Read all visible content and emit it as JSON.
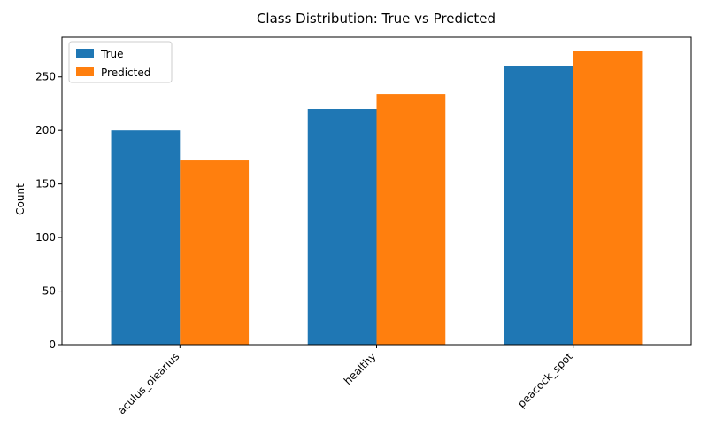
{
  "chart_data": {
    "type": "bar",
    "title": "Class Distribution: True vs Predicted",
    "xlabel": "",
    "ylabel": "Count",
    "categories": [
      "aculus_olearius",
      "healthy",
      "peacock_spot"
    ],
    "series": [
      {
        "name": "True",
        "values": [
          200,
          220,
          260
        ],
        "color": "#1f77b4"
      },
      {
        "name": "Predicted",
        "values": [
          172,
          234,
          274
        ],
        "color": "#ff7f0e"
      }
    ],
    "ylim": [
      0,
      287
    ],
    "yticks": [
      0,
      50,
      100,
      150,
      200,
      250
    ],
    "legend_position": "top-left",
    "grid": false,
    "xtick_rotation": "45 degrees"
  }
}
